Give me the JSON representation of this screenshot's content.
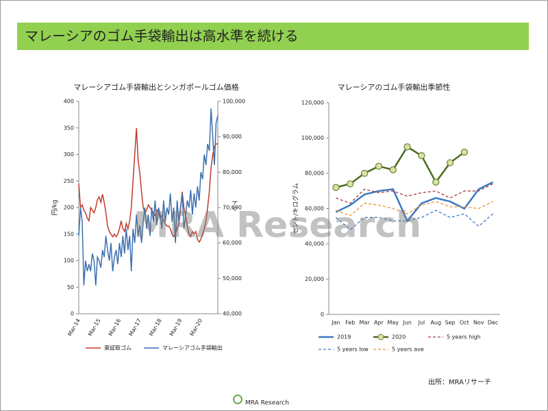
{
  "header": {
    "title": "マレーシアのゴム手袋輸出は高水準を続ける"
  },
  "chart_data": [
    {
      "type": "line",
      "title": "マレーシアゴム手袋輸出とシンガポールゴム価格",
      "ylabel": "円/kg",
      "y2label": "トン",
      "categories": [
        "Mar-14",
        null,
        null,
        null,
        null,
        null,
        null,
        null,
        null,
        null,
        null,
        null,
        "Mar-15",
        null,
        null,
        null,
        null,
        null,
        null,
        null,
        null,
        null,
        null,
        null,
        "Mar-16",
        null,
        null,
        null,
        null,
        null,
        null,
        null,
        null,
        null,
        null,
        null,
        "Mar-17",
        null,
        null,
        null,
        null,
        null,
        null,
        null,
        null,
        null,
        null,
        null,
        "Mar-18",
        null,
        null,
        null,
        null,
        null,
        null,
        null,
        null,
        null,
        null,
        null,
        "Mar-19",
        null,
        null,
        null,
        null,
        null,
        null,
        null,
        null,
        null,
        null,
        null,
        "Mar-20",
        null,
        null,
        null,
        null,
        null,
        null,
        null,
        null,
        null,
        null
      ],
      "ylim": [
        0,
        400
      ],
      "yticks": [
        0,
        50,
        100,
        150,
        200,
        250,
        300,
        350,
        400
      ],
      "y2lim": [
        40000,
        100000
      ],
      "y2ticks": [
        {
          "value": 40000,
          "label": "40,000"
        },
        {
          "value": 50000,
          "label": "50,000"
        },
        {
          "value": 60000,
          "label": "60,000"
        },
        {
          "value": 70000,
          "label": "70,000"
        },
        {
          "value": 80000,
          "label": "80,000"
        },
        {
          "value": 90000,
          "label": "90,000"
        },
        {
          "value": 100000,
          "label": "100,000"
        }
      ],
      "series": [
        {
          "name": "東証取ゴム",
          "color": "#c0392b",
          "values": [
            245,
            200,
            205,
            195,
            190,
            180,
            175,
            200,
            195,
            190,
            200,
            215,
            220,
            210,
            225,
            210,
            190,
            165,
            155,
            150,
            145,
            150,
            145,
            150,
            160,
            175,
            160,
            155,
            170,
            160,
            175,
            200,
            250,
            300,
            350,
            290,
            265,
            230,
            200,
            190,
            195,
            205,
            200,
            195,
            190,
            185,
            195,
            190,
            180,
            185,
            175,
            170,
            165,
            165,
            160,
            150,
            145,
            150,
            160,
            170,
            195,
            230,
            200,
            185,
            165,
            150,
            145,
            155,
            150,
            155,
            140,
            135,
            140,
            150,
            160,
            175,
            200,
            230,
            275,
            300,
            315,
            320,
            320
          ]
        },
        {
          "name": "マレーシアゴム手袋輸出",
          "color": "#3a6fb0",
          "axis": "y2",
          "values": [
            62000,
            70000,
            66000,
            48000,
            55000,
            52000,
            54000,
            52000,
            57000,
            55000,
            48000,
            56000,
            55000,
            53000,
            58000,
            56000,
            62000,
            58000,
            55000,
            60000,
            52000,
            56000,
            58000,
            54000,
            60000,
            56000,
            62000,
            57000,
            64000,
            58000,
            62000,
            52000,
            64000,
            60000,
            68000,
            62000,
            65000,
            60000,
            66000,
            70000,
            64000,
            68000,
            62000,
            70000,
            66000,
            72000,
            65000,
            70000,
            68000,
            64000,
            72000,
            66000,
            70000,
            68000,
            74000,
            66000,
            70000,
            60000,
            72000,
            66000,
            70000,
            74000,
            64000,
            68000,
            72000,
            70000,
            75000,
            68000,
            74000,
            70000,
            76000,
            72000,
            80000,
            78000,
            85000,
            82000,
            88000,
            86000,
            98000,
            90000,
            82000,
            94000,
            96000
          ]
        }
      ]
    },
    {
      "type": "line",
      "title": "マレーシアのゴム手袋輸出季節性",
      "ylabel": "セント/キログラム",
      "categories": [
        "Jan",
        "Feb",
        "Mar",
        "Apr",
        "May",
        "Jun",
        "Jul",
        "Aug",
        "Sep",
        "Oct",
        "Nov",
        "Dec"
      ],
      "ylim": [
        0,
        120000
      ],
      "yticks": [
        0,
        {
          "value": 20000,
          "label": "20,000"
        },
        {
          "value": 40000,
          "label": "40,000"
        },
        {
          "value": 60000,
          "label": "60,000"
        },
        {
          "value": 80000,
          "label": "80,000"
        },
        {
          "value": 100000,
          "label": "100,000"
        },
        {
          "value": 120000,
          "label": "120,000"
        }
      ],
      "series": [
        {
          "name": "2019",
          "color": "#3a78c2",
          "style": "solid",
          "values": [
            58000,
            62000,
            68000,
            70000,
            71000,
            53000,
            63000,
            66000,
            64000,
            60000,
            71000,
            75000
          ]
        },
        {
          "name": "2020",
          "color": "#4a6b1f",
          "style": "solid",
          "marker": "circle",
          "values": [
            72000,
            74000,
            80000,
            84000,
            82000,
            95000,
            90000,
            75000,
            86000,
            92000,
            null,
            null
          ]
        },
        {
          "name": "5 years high",
          "color": "#a33a3a",
          "style": "dashed",
          "values": [
            66000,
            63000,
            71000,
            69000,
            70000,
            67000,
            69000,
            70000,
            66000,
            70000,
            70000,
            74000
          ]
        },
        {
          "name": "5 years low",
          "color": "#3a78c2",
          "style": "dashed",
          "values": [
            55000,
            48000,
            55000,
            55000,
            53000,
            53000,
            55000,
            59000,
            55000,
            57000,
            50000,
            57000
          ]
        },
        {
          "name": "5 years ave",
          "color": "#e8902a",
          "style": "dashed",
          "values": [
            59000,
            56000,
            63000,
            62000,
            60000,
            57000,
            62000,
            64000,
            61000,
            61000,
            60000,
            64000
          ]
        }
      ]
    }
  ],
  "watermark": "MRA Research",
  "source": "出所：MRAリサーチ",
  "logo": "MRA Research"
}
